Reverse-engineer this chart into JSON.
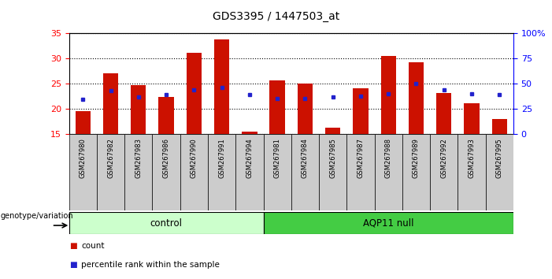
{
  "title": "GDS3395 / 1447503_at",
  "samples": [
    "GSM267980",
    "GSM267982",
    "GSM267983",
    "GSM267986",
    "GSM267990",
    "GSM267991",
    "GSM267994",
    "GSM267981",
    "GSM267984",
    "GSM267985",
    "GSM267987",
    "GSM267988",
    "GSM267989",
    "GSM267992",
    "GSM267993",
    "GSM267995"
  ],
  "red_values": [
    19.5,
    27.0,
    24.7,
    22.3,
    31.2,
    33.8,
    15.4,
    25.7,
    25.1,
    16.2,
    24.1,
    30.5,
    29.3,
    23.2,
    21.1,
    18.0
  ],
  "blue_values": [
    21.9,
    23.6,
    22.4,
    22.8,
    23.8,
    24.3,
    22.8,
    22.0,
    22.1,
    22.3,
    22.5,
    23.0,
    25.0,
    23.8,
    23.0,
    22.8
  ],
  "control_count": 7,
  "ylim_left": [
    15,
    35
  ],
  "ylim_right": [
    0,
    100
  ],
  "yticks_left": [
    15,
    20,
    25,
    30,
    35
  ],
  "yticks_right": [
    0,
    25,
    50,
    75,
    100
  ],
  "right_tick_labels": [
    "0",
    "25",
    "50",
    "75",
    "100%"
  ],
  "bar_color": "#cc1100",
  "dot_color": "#2222cc",
  "control_bg": "#ccffcc",
  "aqp11_bg": "#44cc44",
  "bar_width": 0.55,
  "bg_color": "#ffffff",
  "plot_bg": "#ffffff",
  "tick_bg": "#cccccc",
  "legend_count_label": "count",
  "legend_pct_label": "percentile rank within the sample",
  "group_label": "genotype/variation",
  "group1_label": "control",
  "group2_label": "AQP11 null"
}
